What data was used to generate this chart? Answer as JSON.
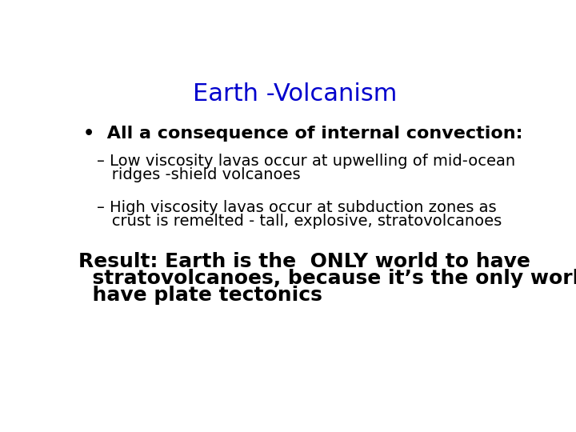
{
  "title": "Earth -Volcanism",
  "title_color": "#0000cd",
  "title_fontsize": 22,
  "background_color": "#ffffff",
  "bullet1": "•  All a consequence of internal convection:",
  "bullet1_fontsize": 16,
  "sub1_line1": "– Low viscosity lavas occur at upwelling of mid-ocean",
  "sub1_line2": "   ridges -shield volcanoes",
  "sub2_line1": "– High viscosity lavas occur at subduction zones as",
  "sub2_line2": "   crust is remelted - tall, explosive, stratovolcanoes",
  "sub_fontsize": 14,
  "result_line1": "Result: Earth is the  ONLY world to have",
  "result_line2": "  stratovolcanoes, because it’s the only world to",
  "result_line3": "  have plate tectonics",
  "result_fontsize": 18,
  "text_color": "#000000",
  "font_family": "DejaVu Sans"
}
